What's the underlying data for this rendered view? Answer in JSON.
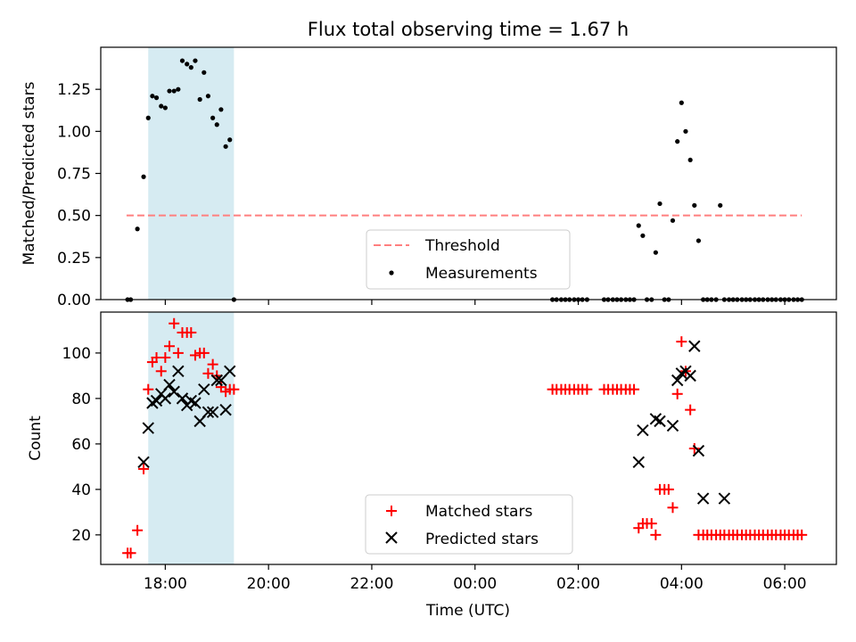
{
  "title": "Flux total observing time = 1.67 h",
  "colors": {
    "threshold": "#ff7f7f",
    "measurements": "#000000",
    "matched": "#ff0000",
    "predicted": "#000000",
    "span": "#add8e6"
  },
  "chart_data": [
    {
      "type": "scatter",
      "ylabel": "Matched/Predicted stars",
      "ylim": [
        0,
        1.5
      ],
      "yticks": [
        0,
        0.25,
        0.5,
        0.75,
        1.0,
        1.25
      ],
      "ytick_labels": [
        "0.00",
        "0.25",
        "0.50",
        "0.75",
        "1.00",
        "1.25"
      ],
      "xlim_hours": [
        16.75,
        31.0
      ],
      "highlight_span_hours": [
        17.67,
        19.33
      ],
      "threshold": {
        "name": "Threshold",
        "value": 0.5,
        "x_hours": [
          17.25,
          30.33
        ]
      },
      "legend": {
        "location": "lower center",
        "entries": [
          "Threshold",
          "Measurements"
        ]
      },
      "series": [
        {
          "name": "Measurements",
          "marker": "dot",
          "x_hours": [
            17.27,
            17.33,
            17.46,
            17.58,
            17.67,
            17.75,
            17.83,
            17.92,
            18.0,
            18.08,
            18.17,
            18.25,
            18.33,
            18.42,
            18.5,
            18.58,
            18.67,
            18.75,
            18.83,
            18.92,
            19.0,
            19.08,
            19.17,
            19.25,
            19.33,
            25.5,
            25.58,
            25.67,
            25.75,
            25.83,
            25.92,
            26.0,
            26.08,
            26.17,
            26.5,
            26.58,
            26.67,
            26.75,
            26.83,
            26.92,
            27.0,
            27.08,
            27.17,
            27.25,
            27.33,
            27.42,
            27.5,
            27.58,
            27.67,
            27.75,
            27.83,
            27.92,
            28.0,
            28.08,
            28.17,
            28.25,
            28.33,
            28.42,
            28.5,
            28.58,
            28.67,
            28.75,
            28.83,
            28.92,
            29.0,
            29.08,
            29.17,
            29.25,
            29.33,
            29.42,
            29.5,
            29.58,
            29.67,
            29.75,
            29.83,
            29.92,
            30.0,
            30.08,
            30.17,
            30.25,
            30.33
          ],
          "y": [
            0,
            0,
            0.42,
            0.73,
            1.08,
            1.21,
            1.2,
            1.15,
            1.14,
            1.24,
            1.24,
            1.25,
            1.42,
            1.4,
            1.38,
            1.42,
            1.19,
            1.35,
            1.21,
            1.08,
            1.04,
            1.13,
            0.91,
            0.95,
            0,
            0,
            0,
            0,
            0,
            0,
            0,
            0,
            0,
            0,
            0,
            0,
            0,
            0,
            0,
            0,
            0,
            0,
            0.44,
            0.38,
            0,
            0,
            0.28,
            0.57,
            0,
            0,
            0.47,
            0.94,
            1.17,
            1.0,
            0.83,
            0.56,
            0.35,
            0,
            0,
            0,
            0,
            0.56,
            0,
            0,
            0,
            0,
            0,
            0,
            0,
            0,
            0,
            0,
            0,
            0,
            0,
            0,
            0,
            0,
            0,
            0,
            0
          ]
        }
      ]
    },
    {
      "type": "scatter",
      "xlabel": "Time (UTC)",
      "ylabel": "Count",
      "ylim": [
        7,
        118
      ],
      "yticks": [
        20,
        40,
        60,
        80,
        100
      ],
      "ytick_labels": [
        "20",
        "40",
        "60",
        "80",
        "100"
      ],
      "xlim_hours": [
        16.75,
        31.0
      ],
      "xticks_hours": [
        18,
        20,
        22,
        24,
        26,
        28,
        30
      ],
      "xtick_labels": [
        "18:00",
        "20:00",
        "22:00",
        "00:00",
        "02:00",
        "04:00",
        "06:00"
      ],
      "highlight_span_hours": [
        17.67,
        19.33
      ],
      "legend": {
        "location": "lower center",
        "entries": [
          "Matched stars",
          "Predicted stars"
        ]
      },
      "series": [
        {
          "name": "Matched stars",
          "marker": "plus",
          "x_hours": [
            17.27,
            17.33,
            17.46,
            17.58,
            17.67,
            17.75,
            17.83,
            17.92,
            18.0,
            18.08,
            18.17,
            18.25,
            18.33,
            18.42,
            18.5,
            18.58,
            18.67,
            18.75,
            18.83,
            18.92,
            19.0,
            19.08,
            19.17,
            19.25,
            19.33,
            25.5,
            25.58,
            25.67,
            25.75,
            25.83,
            25.92,
            26.0,
            26.08,
            26.17,
            26.5,
            26.58,
            26.67,
            26.75,
            26.83,
            26.92,
            27.0,
            27.08,
            27.17,
            27.25,
            27.33,
            27.42,
            27.5,
            27.58,
            27.67,
            27.75,
            27.83,
            27.92,
            28.0,
            28.08,
            28.17,
            28.25,
            28.33,
            28.42,
            28.5,
            28.58,
            28.67,
            28.75,
            28.83,
            28.92,
            29.0,
            29.08,
            29.17,
            29.25,
            29.33,
            29.42,
            29.5,
            29.58,
            29.67,
            29.75,
            29.83,
            29.92,
            30.0,
            30.08,
            30.17,
            30.25,
            30.33
          ],
          "y": [
            12,
            12,
            22,
            49,
            84,
            96,
            98,
            92,
            98,
            103,
            113,
            100,
            109,
            109,
            109,
            99,
            100,
            100,
            91,
            95,
            90,
            85,
            83,
            84,
            84,
            84,
            84,
            84,
            84,
            84,
            84,
            84,
            84,
            84,
            84,
            84,
            84,
            84,
            84,
            84,
            84,
            84,
            23,
            25,
            25,
            25,
            20,
            40,
            40,
            40,
            32,
            82,
            105,
            92,
            75,
            58,
            20,
            20,
            20,
            20,
            20,
            20,
            20,
            20,
            20,
            20,
            20,
            20,
            20,
            20,
            20,
            20,
            20,
            20,
            20,
            20,
            20,
            20,
            20,
            20,
            20
          ]
        },
        {
          "name": "Predicted stars",
          "marker": "x",
          "x_hours": [
            17.58,
            17.67,
            17.75,
            17.83,
            17.92,
            18.0,
            18.08,
            18.17,
            18.25,
            18.33,
            18.42,
            18.5,
            18.58,
            18.67,
            18.75,
            18.83,
            18.92,
            19.0,
            19.08,
            19.17,
            19.25,
            27.17,
            27.25,
            27.5,
            27.58,
            27.83,
            27.92,
            28.0,
            28.08,
            28.17,
            28.25,
            28.33,
            28.42,
            28.83
          ],
          "y": [
            52,
            67,
            78,
            79,
            82,
            80,
            86,
            83,
            92,
            80,
            77,
            79,
            78,
            70,
            84,
            74,
            74,
            88,
            88,
            75,
            92,
            52,
            66,
            71,
            70,
            68,
            88,
            91,
            92,
            90,
            103,
            57,
            36,
            36
          ]
        }
      ]
    }
  ]
}
